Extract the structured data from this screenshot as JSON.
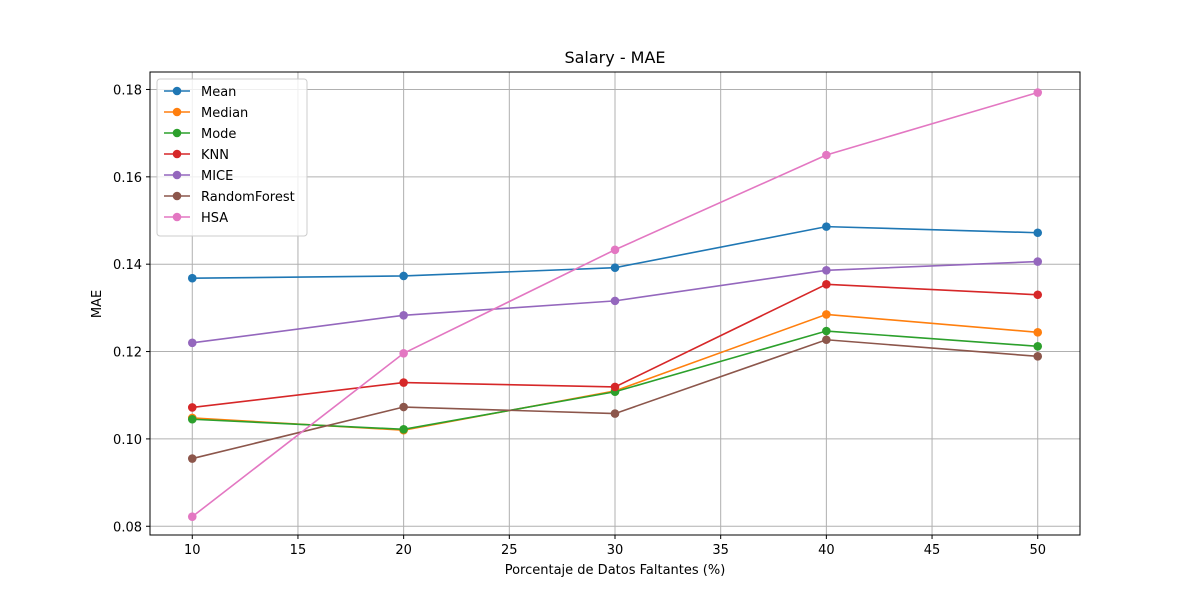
{
  "chart_data": {
    "type": "line",
    "title": "Salary - MAE",
    "xlabel": "Porcentaje de Datos Faltantes (%)",
    "ylabel": "MAE",
    "x": [
      10,
      20,
      30,
      40,
      50
    ],
    "xlim": [
      8,
      52
    ],
    "ylim": [
      0.078,
      0.184
    ],
    "xticks": [
      10,
      15,
      20,
      25,
      30,
      35,
      40,
      45,
      50
    ],
    "yticks": [
      0.08,
      0.1,
      0.12,
      0.14,
      0.16,
      0.18
    ],
    "ytick_labels": [
      "0.08",
      "0.10",
      "0.12",
      "0.14",
      "0.16",
      "0.18"
    ],
    "grid": true,
    "legend_position": "top-left",
    "series": [
      {
        "name": "Mean",
        "color": "#1f77b4",
        "values": [
          0.1368,
          0.1373,
          0.1392,
          0.1486,
          0.1472
        ]
      },
      {
        "name": "Median",
        "color": "#ff7f0e",
        "values": [
          0.1048,
          0.102,
          0.111,
          0.1285,
          0.1244
        ]
      },
      {
        "name": "Mode",
        "color": "#2ca02c",
        "values": [
          0.1045,
          0.1022,
          0.1108,
          0.1247,
          0.1212
        ]
      },
      {
        "name": "KNN",
        "color": "#d62728",
        "values": [
          0.1072,
          0.1129,
          0.1119,
          0.1354,
          0.133
        ]
      },
      {
        "name": "MICE",
        "color": "#9467bd",
        "values": [
          0.122,
          0.1283,
          0.1316,
          0.1386,
          0.1406
        ]
      },
      {
        "name": "RandomForest",
        "color": "#8c564b",
        "values": [
          0.0955,
          0.1073,
          0.1058,
          0.1227,
          0.1189
        ]
      },
      {
        "name": "HSA",
        "color": "#e377c2",
        "values": [
          0.0822,
          0.1196,
          0.1433,
          0.165,
          0.1793
        ]
      }
    ]
  }
}
